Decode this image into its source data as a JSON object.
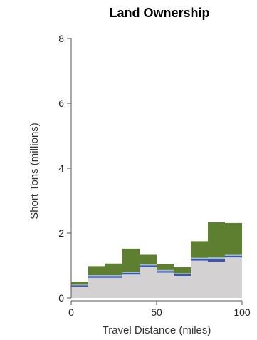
{
  "chart_data": {
    "type": "area",
    "title": "Land Ownership",
    "xlabel": "Travel Distance (miles)",
    "ylabel": "Short Tons (millions)",
    "x_ticks": [
      "0",
      "50",
      "100"
    ],
    "y_ticks": [
      "0",
      "2",
      "4",
      "6",
      "8"
    ],
    "xlim": [
      0,
      100
    ],
    "ylim": [
      0,
      8
    ],
    "grid": false,
    "step_edges": [
      0,
      10,
      20,
      30,
      40,
      50,
      60,
      70,
      80,
      90,
      100
    ],
    "series": [
      {
        "color": "#d3d1d2",
        "values": [
          0.35,
          0.62,
          0.62,
          0.72,
          0.95,
          0.78,
          0.68,
          1.15,
          1.12,
          1.25
        ]
      },
      {
        "color": "#3a55b4",
        "values": [
          0.04,
          0.05,
          0.05,
          0.05,
          0.05,
          0.05,
          0.05,
          0.06,
          0.08,
          0.05
        ]
      },
      {
        "color": "#9fb9d9",
        "values": [
          0.02,
          0.03,
          0.03,
          0.03,
          0.03,
          0.03,
          0.03,
          0.03,
          0.05,
          0.03
        ]
      },
      {
        "color": "#5f7f30",
        "values": [
          0.09,
          0.28,
          0.36,
          0.72,
          0.3,
          0.19,
          0.19,
          0.51,
          1.08,
          0.98
        ]
      }
    ]
  }
}
